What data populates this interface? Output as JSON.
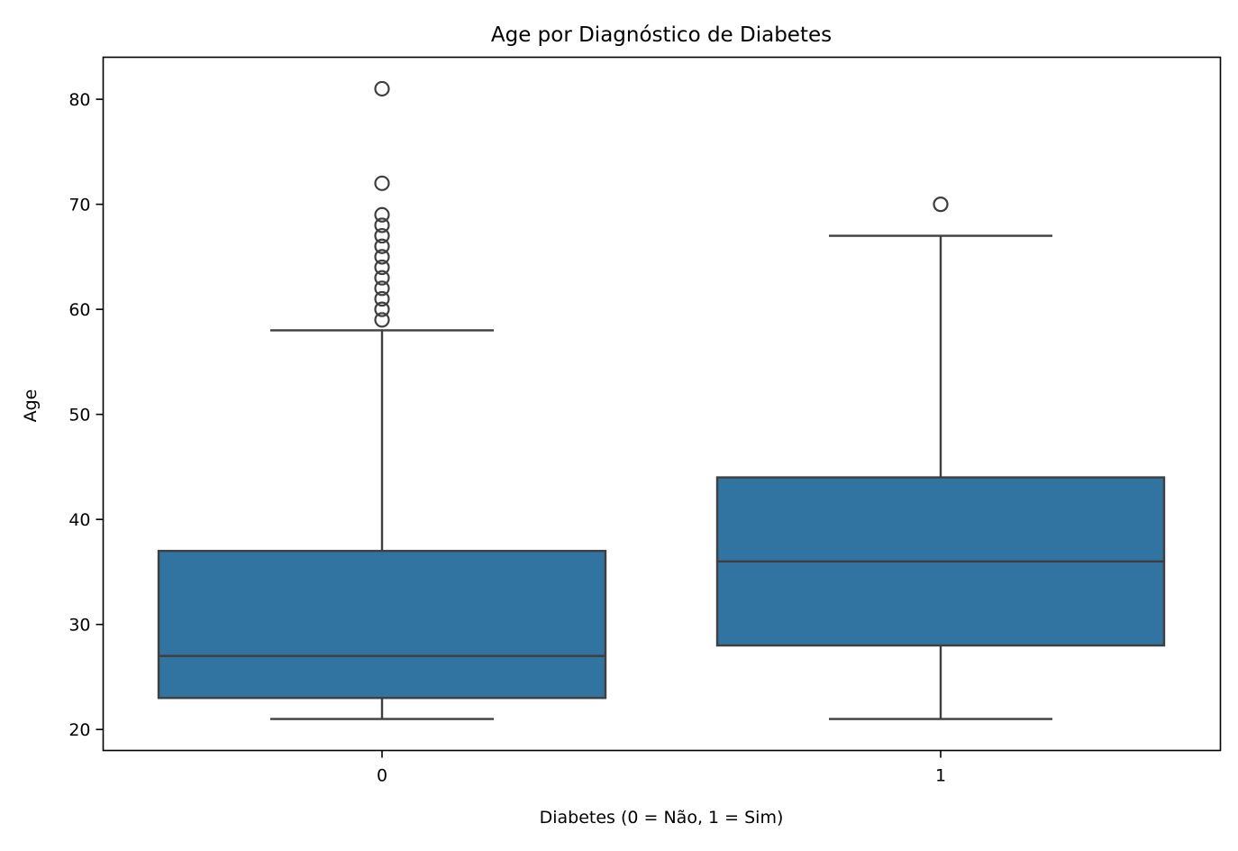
{
  "chart_data": {
    "type": "box",
    "title": "Age por Diagnóstico de Diabetes",
    "xlabel": "Diabetes (0 = Não, 1 = Sim)",
    "ylabel": "Age",
    "ylim": [
      18,
      84
    ],
    "yticks": [
      20,
      30,
      40,
      50,
      60,
      70,
      80
    ],
    "categories": [
      "0",
      "1"
    ],
    "grid": false,
    "box_color": "#3274a1",
    "line_color": "#3f3f3f",
    "boxes": [
      {
        "category": "0",
        "whisker_low": 21,
        "q1": 23,
        "median": 27,
        "q3": 37,
        "whisker_high": 58,
        "outliers": [
          59,
          60,
          61,
          62,
          63,
          64,
          65,
          66,
          67,
          68,
          69,
          72,
          81
        ]
      },
      {
        "category": "1",
        "whisker_low": 21,
        "q1": 28,
        "median": 36,
        "q3": 44,
        "whisker_high": 67,
        "outliers": [
          70
        ]
      }
    ]
  }
}
